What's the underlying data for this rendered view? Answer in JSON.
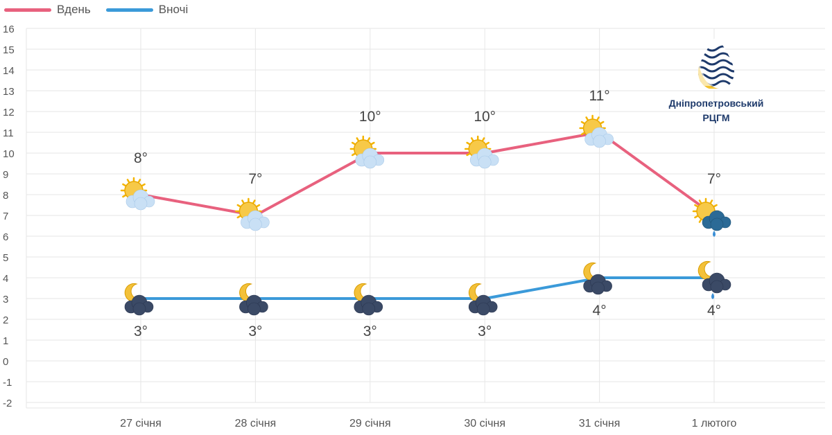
{
  "legend": {
    "day_label": "Вдень",
    "night_label": "Вночі"
  },
  "logo": {
    "line1": "Дніпропетровський",
    "line2": "РЦГМ"
  },
  "colors": {
    "day": "#e8617e",
    "night": "#3b9ad9",
    "grid": "#e6e6e6",
    "text": "#555555"
  },
  "chart_data": {
    "type": "line",
    "categories": [
      "27 січня",
      "28 січня",
      "29 січня",
      "30 січня",
      "31 січня",
      "1 лютого"
    ],
    "series": [
      {
        "name": "Вдень",
        "values": [
          8,
          7,
          10,
          10,
          11,
          7
        ],
        "labels": [
          "8°",
          "7°",
          "10°",
          "10°",
          "11°",
          "7°"
        ],
        "icons": [
          "sun-cloud-icon",
          "sun-cloud-icon",
          "sun-cloud-icon",
          "sun-cloud-icon",
          "sun-cloud-icon",
          "sun-rain-cloud-icon"
        ]
      },
      {
        "name": "Вночі",
        "values": [
          3,
          3,
          3,
          3,
          4,
          4
        ],
        "labels": [
          "3°",
          "3°",
          "3°",
          "3°",
          "4°",
          "4°"
        ],
        "icons": [
          "moon-cloud-icon",
          "moon-cloud-icon",
          "moon-cloud-icon",
          "moon-cloud-icon",
          "moon-cloud-icon",
          "moon-rain-cloud-icon"
        ]
      }
    ],
    "y_ticks": [
      "16",
      "15",
      "14",
      "13",
      "12",
      "11",
      "10",
      "9",
      "8",
      "7",
      "6",
      "5",
      "4",
      "3",
      "2",
      "1",
      "0",
      "-1",
      "-2"
    ],
    "ylim": [
      -2,
      16
    ],
    "grid": true,
    "legend_position": "top-left"
  }
}
